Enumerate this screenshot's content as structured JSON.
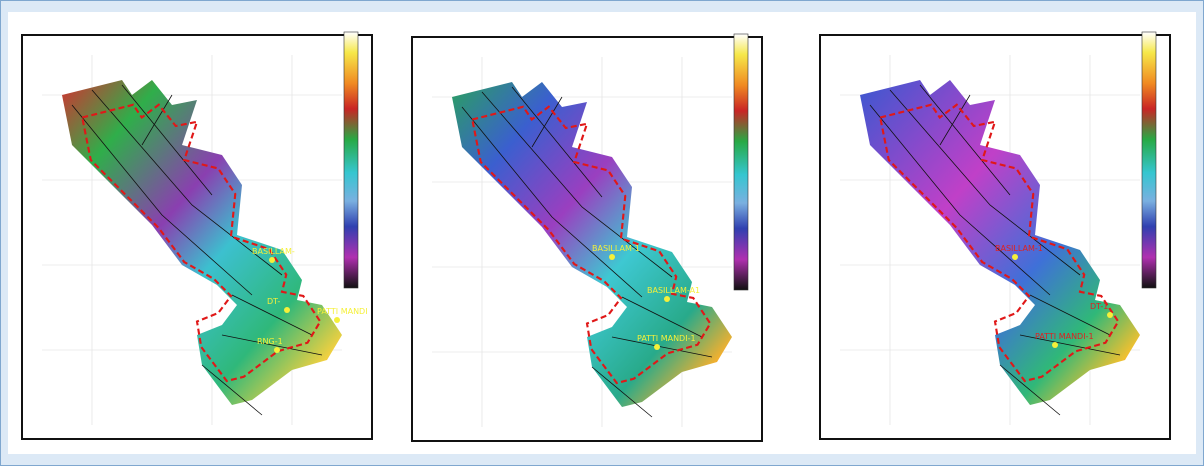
{
  "panels": [
    {
      "wells": [
        "BASILLAM-",
        "DT-",
        "PATTI MANDI",
        "RNG-1"
      ]
    },
    {
      "wells": [
        "BASILLAM-1",
        "BASILLAM-A1",
        "PATTI MANDI-1"
      ]
    },
    {
      "wells": [
        "BASILLAM-1",
        "DT-1",
        "PATTI MANDI-1"
      ]
    }
  ]
}
